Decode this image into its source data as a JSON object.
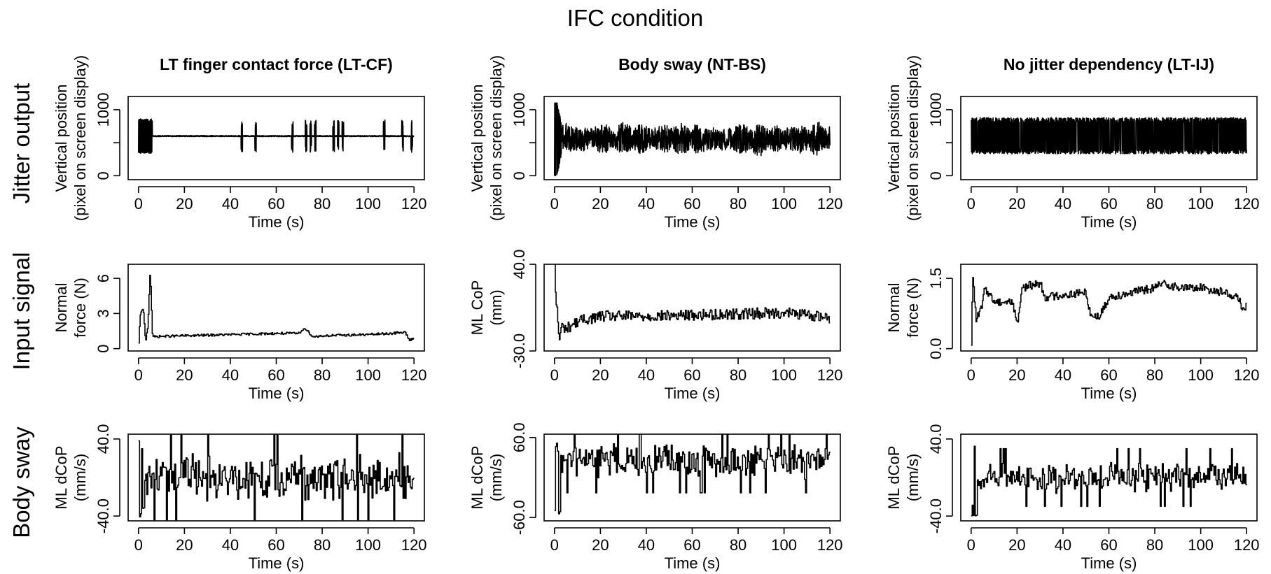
{
  "figure_title": "IFC condition",
  "row_labels": [
    "Jitter output",
    "Input signal",
    "Body sway"
  ],
  "chart_data": [
    {
      "type": "line",
      "title": "LT finger contact force (LT-CF)",
      "xlabel": "Time (s)",
      "ylabel": [
        "Vertical position",
        "(pixel on screen display)"
      ],
      "xlim": [
        0,
        120
      ],
      "ylim": [
        -60,
        1200
      ],
      "xticks": [
        0,
        20,
        40,
        60,
        80,
        100,
        120
      ],
      "yticks": [
        0,
        500,
        1000
      ],
      "ytick_labels": [
        "0",
        "",
        "1000"
      ],
      "signal": {
        "kind": "jitter_bursts",
        "center": 600,
        "baseline_noise": 18,
        "burst_amp": 260,
        "burst_start": 0,
        "burst_end": 6,
        "spikes": [
          45,
          51,
          67,
          73,
          75,
          77,
          85,
          87,
          89,
          107,
          115,
          119
        ]
      }
    },
    {
      "type": "line",
      "title": "Body sway (NT-BS)",
      "xlabel": "Time (s)",
      "ylabel": [
        "Vertical position",
        "(pixel on screen display)"
      ],
      "xlim": [
        0,
        120
      ],
      "ylim": [
        -60,
        1200
      ],
      "xticks": [
        0,
        20,
        40,
        60,
        80,
        100,
        120
      ],
      "yticks": [
        0,
        500,
        1000
      ],
      "ytick_labels": [
        "0",
        "",
        "1000"
      ],
      "signal": {
        "kind": "dense_noise",
        "center": 560,
        "amp": 220,
        "start_peak": [
          1100,
          0
        ]
      }
    },
    {
      "type": "line",
      "title": "No jitter dependency (LT-IJ)",
      "xlabel": "Time (s)",
      "ylabel": [
        "Vertical position",
        "(pixel on screen display)"
      ],
      "xlim": [
        0,
        120
      ],
      "ylim": [
        -60,
        1200
      ],
      "xticks": [
        0,
        20,
        40,
        60,
        80,
        100,
        120
      ],
      "yticks": [
        0,
        500,
        1000
      ],
      "ytick_labels": [
        "0",
        "",
        "1000"
      ],
      "signal": {
        "kind": "uniform_band",
        "low": 330,
        "high": 880
      }
    },
    {
      "type": "line",
      "xlabel": "Time (s)",
      "ylabel": [
        "Normal",
        "force (N)"
      ],
      "xlim": [
        0,
        120
      ],
      "ylim": [
        -0.2,
        7.2
      ],
      "xticks": [
        0,
        20,
        40,
        60,
        80,
        100,
        120
      ],
      "yticks": [
        0,
        3,
        6
      ],
      "ytick_labels": [
        "0",
        "3",
        "6"
      ],
      "signal": {
        "kind": "step_walk",
        "points": [
          [
            0,
            0.4
          ],
          [
            0.5,
            2.5
          ],
          [
            1,
            3.2
          ],
          [
            2,
            3.3
          ],
          [
            3,
            0.6
          ],
          [
            4,
            2
          ],
          [
            5,
            6.8
          ],
          [
            6,
            1.0
          ],
          [
            10,
            1.05
          ],
          [
            20,
            1.1
          ],
          [
            40,
            1.2
          ],
          [
            60,
            1.3
          ],
          [
            70,
            1.3
          ],
          [
            72,
            1.8
          ],
          [
            74,
            1.4
          ],
          [
            76,
            1.0
          ],
          [
            80,
            1.1
          ],
          [
            100,
            1.2
          ],
          [
            110,
            1.3
          ],
          [
            116,
            1.4
          ],
          [
            118,
            0.7
          ],
          [
            120,
            1.0
          ]
        ],
        "jitter": 0.1
      }
    },
    {
      "type": "line",
      "xlabel": "Time (s)",
      "ylabel": [
        "ML CoP",
        "(mm)"
      ],
      "xlim": [
        0,
        120
      ],
      "ylim": [
        -30,
        40
      ],
      "ytick_labels": [
        "-30.0",
        "40.0"
      ],
      "yticks": [
        -30,
        40
      ],
      "xticks": [
        0,
        20,
        40,
        60,
        80,
        100,
        120
      ],
      "signal": {
        "kind": "step_walk",
        "points": [
          [
            0,
            38
          ],
          [
            0.5,
            10
          ],
          [
            1,
            5
          ],
          [
            2,
            -22
          ],
          [
            3,
            -10
          ],
          [
            5,
            -12
          ],
          [
            10,
            -6
          ],
          [
            20,
            -2
          ],
          [
            40,
            -2
          ],
          [
            60,
            -1
          ],
          [
            80,
            0
          ],
          [
            100,
            1
          ],
          [
            120,
            -3
          ]
        ],
        "jitter": 4.5
      }
    },
    {
      "type": "line",
      "xlabel": "Time (s)",
      "ylabel": [
        "Normal",
        "force (N)"
      ],
      "xlim": [
        0,
        120
      ],
      "ylim": [
        -0.05,
        1.8
      ],
      "xticks": [
        0,
        20,
        40,
        60,
        80,
        100,
        120
      ],
      "yticks": [
        0,
        1.5
      ],
      "ytick_labels": [
        "0.0",
        "1.5"
      ],
      "signal": {
        "kind": "step_walk",
        "points": [
          [
            0,
            0
          ],
          [
            0.5,
            1.5
          ],
          [
            1,
            1.4
          ],
          [
            2,
            0.6
          ],
          [
            4,
            0.8
          ],
          [
            6,
            1.3
          ],
          [
            10,
            1.0
          ],
          [
            18,
            1.0
          ],
          [
            20,
            0.5
          ],
          [
            22,
            1.3
          ],
          [
            30,
            1.4
          ],
          [
            32,
            1.1
          ],
          [
            50,
            1.2
          ],
          [
            52,
            0.7
          ],
          [
            56,
            0.7
          ],
          [
            60,
            1.1
          ],
          [
            80,
            1.3
          ],
          [
            84,
            1.4
          ],
          [
            90,
            1.3
          ],
          [
            100,
            1.3
          ],
          [
            110,
            1.2
          ],
          [
            116,
            1.1
          ],
          [
            118,
            0.85
          ],
          [
            120,
            0.9
          ]
        ],
        "jitter": 0.09
      }
    },
    {
      "type": "line",
      "xlabel": "Time (s)",
      "ylabel": [
        "ML dCoP",
        "(mm/s)"
      ],
      "xlim": [
        0,
        120
      ],
      "ylim": [
        -45,
        45
      ],
      "xticks": [
        0,
        20,
        40,
        60,
        80,
        100,
        120
      ],
      "yticks": [
        -40,
        40
      ],
      "ytick_labels": [
        "-40.0",
        "40.0"
      ],
      "signal": {
        "kind": "pulses",
        "amp": 22,
        "start_peak": [
          -42,
          42
        ]
      }
    },
    {
      "type": "line",
      "xlabel": "Time (s)",
      "ylabel": [
        "ML dCoP",
        "(mm/s)"
      ],
      "xlim": [
        0,
        120
      ],
      "ylim": [
        -65,
        65
      ],
      "xticks": [
        0,
        20,
        40,
        60,
        80,
        100,
        120
      ],
      "yticks": [
        -60,
        60
      ],
      "ytick_labels": [
        "-60.0",
        "60.0"
      ],
      "signal": {
        "kind": "pulses",
        "amp": 24,
        "start_peak": [
          -62,
          55
        ],
        "offset": 25
      }
    },
    {
      "type": "line",
      "xlabel": "Time (s)",
      "ylabel": [
        "ML dCoP",
        "(mm/s)"
      ],
      "xlim": [
        0,
        120
      ],
      "ylim": [
        -45,
        45
      ],
      "xticks": [
        0,
        20,
        40,
        60,
        80,
        100,
        120
      ],
      "yticks": [
        -40,
        40
      ],
      "ytick_labels": [
        "-40.0",
        "40.0"
      ],
      "signal": {
        "kind": "pulses",
        "amp": 15,
        "start_peak": [
          -40,
          45
        ]
      }
    }
  ]
}
